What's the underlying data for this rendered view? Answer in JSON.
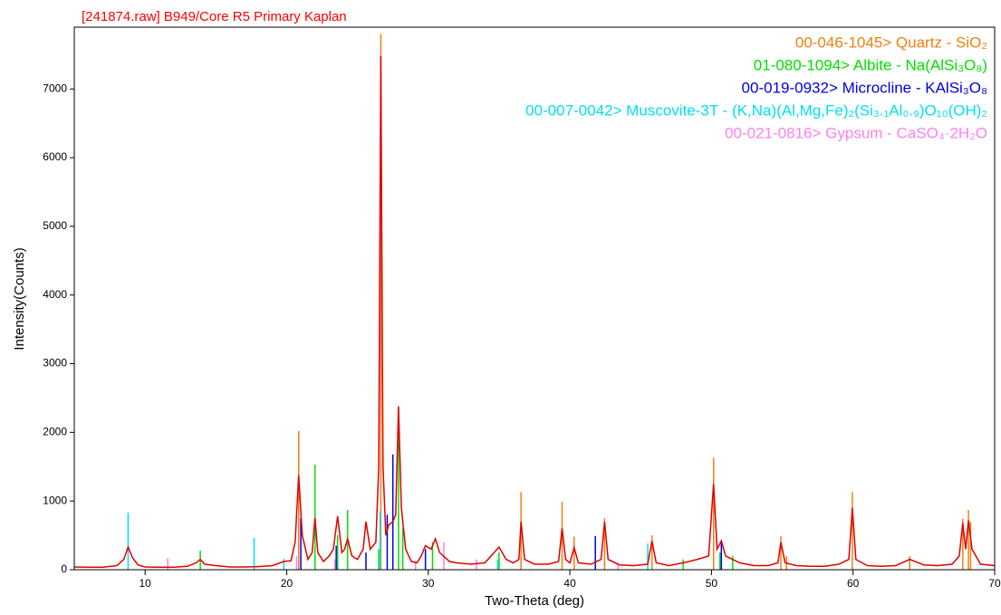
{
  "chart_data": {
    "type": "xrd",
    "title": "[241874.raw] B949/Core R5 Primary Kaplan",
    "title_color": "#ff0000",
    "xlabel": "Two-Theta (deg)",
    "ylabel": "Intensity(Counts)",
    "xlim": [
      5,
      70
    ],
    "ylim": [
      0,
      7900
    ],
    "xticks": [
      10,
      20,
      30,
      40,
      50,
      60,
      70
    ],
    "yticks": [
      0,
      1000,
      2000,
      3000,
      4000,
      5000,
      6000,
      7000
    ],
    "pattern": {
      "color": "#e00000",
      "x": [
        5,
        6,
        7,
        8,
        8.5,
        8.8,
        9.1,
        9.5,
        10,
        11,
        12,
        13,
        13.6,
        13.9,
        14.2,
        15,
        16,
        17,
        18,
        19,
        19.8,
        20.3,
        20.6,
        20.85,
        21.1,
        21.5,
        21.8,
        22.0,
        22.2,
        22.6,
        23.0,
        23.3,
        23.6,
        23.9,
        24.1,
        24.3,
        24.6,
        25.0,
        25.4,
        25.6,
        25.9,
        26.3,
        26.5,
        26.65,
        26.8,
        27.0,
        27.2,
        27.5,
        27.7,
        27.9,
        28.1,
        28.4,
        28.8,
        29.2,
        29.5,
        29.8,
        30.2,
        30.5,
        30.8,
        31.5,
        32,
        33,
        34,
        35.0,
        35.5,
        36,
        36.4,
        36.55,
        36.8,
        37.5,
        38.5,
        39.2,
        39.45,
        39.7,
        40.0,
        40.3,
        40.6,
        41.5,
        42.2,
        42.45,
        42.7,
        43.5,
        44.5,
        45.5,
        45.8,
        46.1,
        47,
        48,
        49,
        49.8,
        50.15,
        50.4,
        50.7,
        51.0,
        52,
        53,
        54,
        54.7,
        54.9,
        55.2,
        56,
        57,
        58,
        59,
        59.7,
        59.95,
        60.2,
        61,
        62,
        63,
        64.0,
        65,
        66,
        67,
        67.5,
        67.75,
        67.95,
        68.15,
        68.4,
        69,
        70
      ],
      "values": [
        40,
        35,
        35,
        60,
        150,
        330,
        180,
        70,
        40,
        35,
        35,
        50,
        100,
        150,
        80,
        60,
        40,
        40,
        45,
        60,
        120,
        130,
        400,
        1380,
        500,
        150,
        250,
        760,
        250,
        120,
        200,
        300,
        780,
        250,
        300,
        450,
        200,
        150,
        300,
        700,
        300,
        400,
        1500,
        7480,
        1500,
        500,
        650,
        700,
        800,
        2380,
        900,
        300,
        120,
        100,
        200,
        350,
        300,
        450,
        250,
        120,
        100,
        80,
        100,
        330,
        150,
        100,
        150,
        700,
        150,
        80,
        80,
        120,
        600,
        150,
        100,
        320,
        100,
        80,
        150,
        700,
        150,
        70,
        60,
        80,
        420,
        100,
        60,
        100,
        150,
        200,
        1250,
        300,
        420,
        200,
        100,
        60,
        60,
        100,
        400,
        100,
        60,
        50,
        50,
        80,
        150,
        900,
        150,
        60,
        50,
        60,
        150,
        70,
        60,
        80,
        200,
        680,
        300,
        720,
        300,
        80,
        60
      ]
    },
    "series": [
      {
        "name": "00-046-1045> Quartz - SiO₂",
        "color": "#f08010",
        "x": [
          20.85,
          26.65,
          36.55,
          39.45,
          40.3,
          42.45,
          45.8,
          50.15,
          54.9,
          55.3,
          59.95,
          64.0,
          67.75,
          68.15,
          68.3
        ],
        "values": [
          2020,
          7800,
          1130,
          990,
          480,
          750,
          500,
          1630,
          490,
          200,
          1130,
          200,
          740,
          870,
          700
        ]
      },
      {
        "name": "01-080-1094> Albite - Na(AlSi₃O₈)",
        "color": "#00e000",
        "x": [
          13.9,
          22.0,
          23.6,
          24.3,
          26.5,
          27.9,
          28.2,
          30.3,
          35.0,
          48.0,
          50.6,
          51.5
        ],
        "values": [
          280,
          1530,
          500,
          870,
          300,
          2000,
          600,
          400,
          250,
          150,
          250,
          200
        ]
      },
      {
        "name": "00-019-0932> Microcline - KAlSi₃O₈",
        "color": "#0000e0",
        "x": [
          21.0,
          23.5,
          25.6,
          27.1,
          27.5,
          29.8,
          41.8,
          50.7
        ],
        "values": [
          750,
          350,
          250,
          800,
          1680,
          300,
          490,
          430
        ]
      },
      {
        "name": "00-007-0042> Muscovite-3T - (K,Na)(Al,Mg,Fe)₂(Si₃.₁Al₀.₉)O₁₀(OH)₂",
        "color": "#00e0f0",
        "x": [
          8.8,
          17.7,
          19.8,
          26.6,
          34.9,
          45.5
        ],
        "values": [
          830,
          460,
          160,
          850,
          150,
          380
        ]
      },
      {
        "name": "00-021-0816> Gypsum - CaSO₄·2H₂O",
        "color": "#ff80f0",
        "x": [
          11.6,
          20.7,
          23.4,
          29.1,
          31.1,
          33.4,
          43.4
        ],
        "values": [
          170,
          200,
          150,
          130,
          400,
          150,
          100
        ]
      }
    ]
  }
}
